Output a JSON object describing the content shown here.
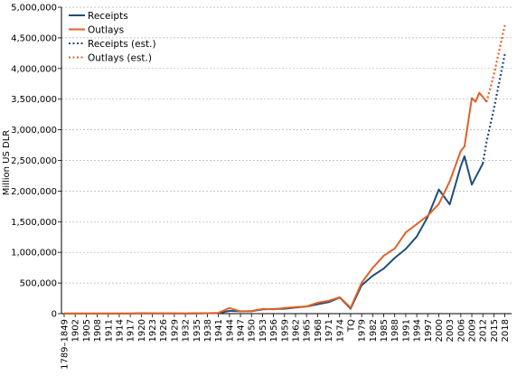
{
  "chart_data": {
    "type": "line",
    "title": "",
    "ylabel": "Million US DLR",
    "xlabel": "",
    "ylim": [
      0,
      5000000
    ],
    "yticks": [
      0,
      500000,
      1000000,
      1500000,
      2000000,
      2500000,
      3000000,
      3500000,
      4000000,
      4500000,
      5000000
    ],
    "ytick_labels": [
      "0",
      "500,000",
      "1,000,000",
      "1,500,000",
      "2,000,000",
      "2,500,000",
      "3,000,000",
      "3,500,000",
      "4,000,000",
      "4,500,000",
      "5,000,000"
    ],
    "grid": true,
    "legend_position": "top-left",
    "x_categories": [
      "1789–1849",
      "1902",
      "1905",
      "1908",
      "1911",
      "1914",
      "1917",
      "1920",
      "1923",
      "1926",
      "1929",
      "1932",
      "1935",
      "1938",
      "1941",
      "1944",
      "1947",
      "1950",
      "1953",
      "1956",
      "1959",
      "1962",
      "1965",
      "1968",
      "1971",
      "1974",
      "TQ",
      "1979",
      "1982",
      "1985",
      "1988",
      "1991",
      "1994",
      "1997",
      "2000",
      "2003",
      "2006",
      "2009",
      "2012",
      "2015",
      "2018"
    ],
    "series": [
      {
        "name": "Receipts",
        "color": "#1f4e79",
        "dash": "solid",
        "points": [
          [
            "1789–1849",
            1000
          ],
          [
            "1902",
            1000
          ],
          [
            "1905",
            1000
          ],
          [
            "1908",
            1000
          ],
          [
            "1911",
            1000
          ],
          [
            "1914",
            1000
          ],
          [
            "1917",
            1000
          ],
          [
            "1920",
            6000
          ],
          [
            "1923",
            4000
          ],
          [
            "1926",
            4000
          ],
          [
            "1929",
            4000
          ],
          [
            "1932",
            2000
          ],
          [
            "1935",
            4000
          ],
          [
            "1938",
            6000
          ],
          [
            "1941",
            9000
          ],
          [
            "1944",
            44000
          ],
          [
            "1947",
            39000
          ],
          [
            "1950",
            39000
          ],
          [
            "1953",
            70000
          ],
          [
            "1956",
            75000
          ],
          [
            "1959",
            79000
          ],
          [
            "1962",
            100000
          ],
          [
            "1965",
            117000
          ],
          [
            "1968",
            153000
          ],
          [
            "1971",
            187000
          ],
          [
            "1974",
            263000
          ],
          [
            "TQ",
            81000
          ],
          [
            "1979",
            463000
          ],
          [
            "1982",
            618000
          ],
          [
            "1985",
            734000
          ],
          [
            "1988",
            909000
          ],
          [
            "1991",
            1055000
          ],
          [
            "1994",
            1258000
          ],
          [
            "1997",
            1579000
          ],
          [
            "2000",
            2025000
          ],
          [
            "2003",
            1783000
          ],
          [
            "2006",
            2407000
          ],
          [
            "2007",
            2568000
          ],
          [
            "2009",
            2105000
          ],
          [
            "2012",
            2450000
          ]
        ]
      },
      {
        "name": "Outlays",
        "color": "#e0622a",
        "dash": "solid",
        "points": [
          [
            "1789–1849",
            1000
          ],
          [
            "1902",
            1000
          ],
          [
            "1905",
            1000
          ],
          [
            "1908",
            1000
          ],
          [
            "1911",
            1000
          ],
          [
            "1914",
            1000
          ],
          [
            "1917",
            2000
          ],
          [
            "1920",
            6000
          ],
          [
            "1923",
            3000
          ],
          [
            "1926",
            3000
          ],
          [
            "1929",
            3000
          ],
          [
            "1932",
            5000
          ],
          [
            "1935",
            6000
          ],
          [
            "1938",
            7000
          ],
          [
            "1941",
            14000
          ],
          [
            "1944",
            92000
          ],
          [
            "1947",
            35000
          ],
          [
            "1950",
            43000
          ],
          [
            "1953",
            76000
          ],
          [
            "1956",
            71000
          ],
          [
            "1959",
            92000
          ],
          [
            "1962",
            107000
          ],
          [
            "1965",
            118000
          ],
          [
            "1968",
            178000
          ],
          [
            "1971",
            210000
          ],
          [
            "1974",
            269000
          ],
          [
            "TQ",
            96000
          ],
          [
            "1979",
            504000
          ],
          [
            "1982",
            746000
          ],
          [
            "1985",
            946000
          ],
          [
            "1988",
            1064000
          ],
          [
            "1991",
            1324000
          ],
          [
            "1994",
            1462000
          ],
          [
            "1997",
            1601000
          ],
          [
            "2000",
            1789000
          ],
          [
            "2003",
            2160000
          ],
          [
            "2006",
            2655000
          ],
          [
            "2007",
            2729000
          ],
          [
            "2009",
            3518000
          ],
          [
            "2010",
            3457000
          ],
          [
            "2011",
            3603000
          ],
          [
            "2012",
            3537000
          ],
          [
            "2013",
            3455000
          ]
        ]
      },
      {
        "name": "Receipts (est.)",
        "color": "#1f4e79",
        "dash": "dotted",
        "points": [
          [
            "2012",
            2450000
          ],
          [
            "2013",
            2800000
          ],
          [
            "2015",
            3340000
          ],
          [
            "2018",
            4240000
          ]
        ]
      },
      {
        "name": "Outlays  (est.)",
        "color": "#e0622a",
        "dash": "dotted",
        "points": [
          [
            "2013",
            3455000
          ],
          [
            "2015",
            3900000
          ],
          [
            "2018",
            4710000
          ]
        ]
      }
    ]
  }
}
